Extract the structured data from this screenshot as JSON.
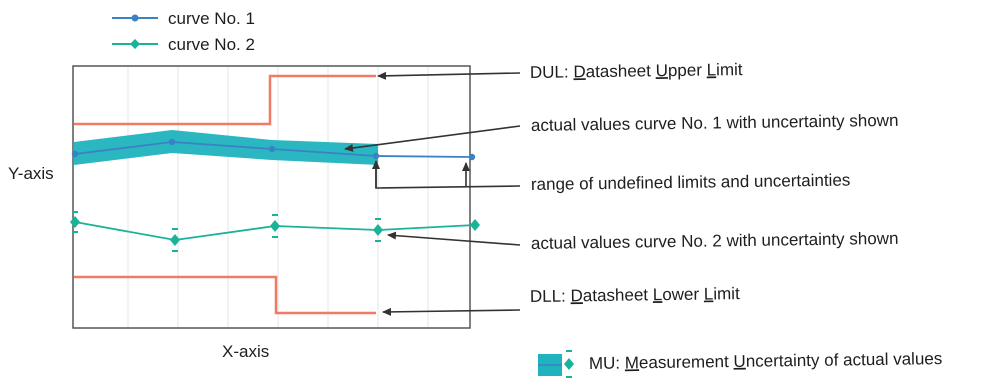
{
  "legend": {
    "curve1": "curve No. 1",
    "curve2": "curve No. 2"
  },
  "axes": {
    "y_label": "Y-axis",
    "x_label": "X-axis"
  },
  "annotations": {
    "dul": [
      {
        "t": "DUL: ",
        "u": false
      },
      {
        "t": "D",
        "u": true
      },
      {
        "t": "atasheet ",
        "u": false
      },
      {
        "t": "U",
        "u": true
      },
      {
        "t": "pper ",
        "u": false
      },
      {
        "t": "L",
        "u": true
      },
      {
        "t": "imit",
        "u": false
      }
    ],
    "curve1_actual": "actual values curve No. 1 with uncertainty shown",
    "undefined_range": "range of undefined limits and uncertainties",
    "curve2_actual": "actual values curve No. 2 with uncertainty shown",
    "dll": [
      {
        "t": "DLL: ",
        "u": false
      },
      {
        "t": "D",
        "u": true
      },
      {
        "t": "atasheet ",
        "u": false
      },
      {
        "t": "L",
        "u": true
      },
      {
        "t": "ower ",
        "u": false
      },
      {
        "t": "L",
        "u": true
      },
      {
        "t": "imit",
        "u": false
      }
    ],
    "mu": [
      {
        "t": "MU: ",
        "u": false
      },
      {
        "t": "M",
        "u": true
      },
      {
        "t": "easurement ",
        "u": false
      },
      {
        "t": "U",
        "u": true
      },
      {
        "t": "ncertainty of actual values",
        "u": false
      }
    ]
  },
  "colors": {
    "curve1": "#3b82c4",
    "curve2": "#19b39a",
    "uncertainty_band": "#1fb3bf",
    "limit": "#f07a66",
    "grid": "#e4e4e4",
    "text": "#1e1e1e",
    "arrow": "#333333"
  }
}
